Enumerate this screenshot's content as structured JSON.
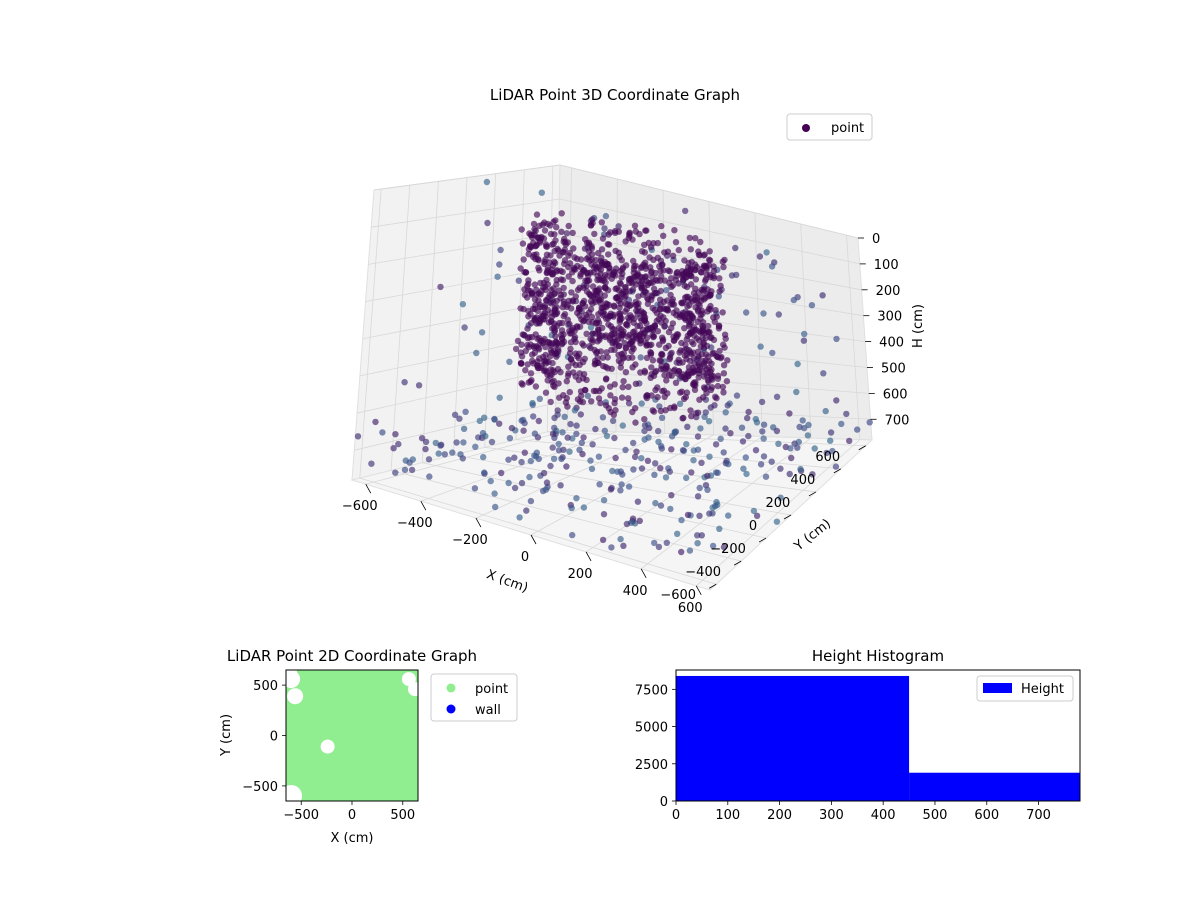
{
  "chart_data": [
    {
      "type": "scatter",
      "projection": "3d",
      "title": "LiDAR Point 3D Coordinate Graph",
      "xlabel": "X (cm)",
      "ylabel": "Y (cm)",
      "zlabel": "H (cm)",
      "x_ticks": [
        "−600",
        "−400",
        "−200",
        "0",
        "200",
        "400",
        "600"
      ],
      "y_ticks": [
        "−600",
        "−400",
        "−200",
        "0",
        "200",
        "400",
        "600"
      ],
      "z_ticks": [
        "0",
        "100",
        "200",
        "300",
        "400",
        "500",
        "600",
        "700"
      ],
      "xlim": [
        -650,
        650
      ],
      "ylim": [
        -650,
        650
      ],
      "zlim": [
        0,
        780
      ],
      "z_inverted": true,
      "grid": true,
      "colormap": "viridis",
      "legend": {
        "placement": "top-right",
        "entries": [
          "point"
        ]
      },
      "series": [
        {
          "name": "point",
          "description_of_shape": "dense ring (wall) of points around the origin plus sparse scattered points",
          "ring_radius": 300,
          "ring_height_range": [
            50,
            500
          ]
        }
      ]
    },
    {
      "type": "scatter",
      "title": "LiDAR Point 2D Coordinate Graph",
      "xlabel": "X (cm)",
      "ylabel": "Y (cm)",
      "x_ticks": [
        "−500",
        "0",
        "500"
      ],
      "y_ticks": [
        "500",
        "0",
        "−500"
      ],
      "xlim": [
        -650,
        650
      ],
      "ylim": [
        -650,
        650
      ],
      "legend": {
        "placement": "right",
        "entries": [
          "point",
          "wall"
        ]
      },
      "series": [
        {
          "name": "point",
          "color": "#90ee90"
        },
        {
          "name": "wall",
          "color": "#0000ff"
        }
      ]
    },
    {
      "type": "bar",
      "title": "Height Histogram",
      "x_ticks": [
        "0",
        "100",
        "200",
        "300",
        "400",
        "500",
        "600",
        "700"
      ],
      "y_ticks": [
        "0",
        "2500",
        "5000",
        "7500"
      ],
      "xlim": [
        0,
        780
      ],
      "ylim": [
        0,
        8800
      ],
      "legend": {
        "placement": "top-right",
        "entries": [
          "Height"
        ]
      },
      "series": [
        {
          "name": "Height",
          "color": "#0000ff",
          "bins": [
            {
              "from": 0,
              "to": 450,
              "count": 8400
            },
            {
              "from": 450,
              "to": 780,
              "count": 1900
            }
          ]
        }
      ]
    }
  ]
}
